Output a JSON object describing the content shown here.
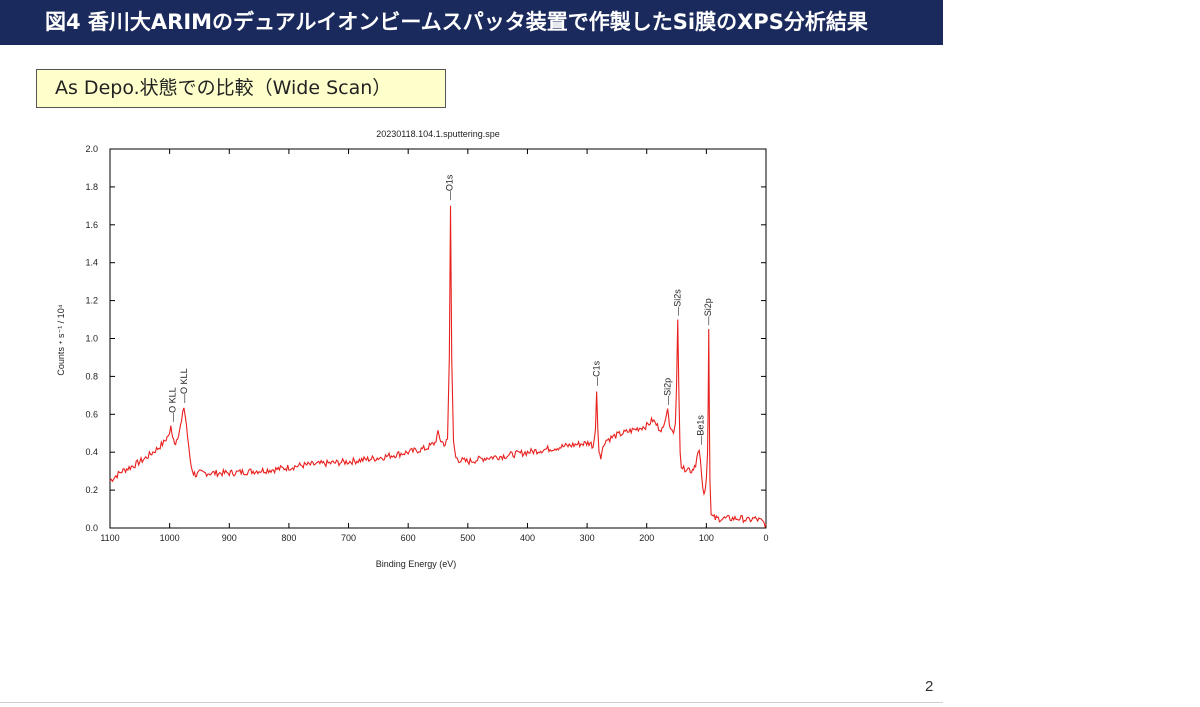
{
  "slide": {
    "title": "図4 香川大ARIMのデュアルイオンビームスパッタ装置で作製したSi膜のXPS分析結果",
    "subtitle": "As Depo.状態での比較（Wide Scan）",
    "page_number": "2"
  },
  "colors": {
    "title_bar": "#1b2a5c",
    "subtitle_box": "#ffffcc",
    "trace": "#e8201e"
  },
  "chart_data": {
    "type": "line",
    "title": "20230118.104.1.sputtering.spe",
    "xlabel": "Binding Energy (eV)",
    "ylabel": "Counts・s⁻¹ / 10⁴",
    "xlim": [
      1100,
      0
    ],
    "ylim": [
      0,
      2.0
    ],
    "x_reversed": true,
    "x_ticks": [
      1100,
      1000,
      900,
      800,
      700,
      600,
      500,
      400,
      300,
      200,
      100,
      0
    ],
    "x_tick_labels": [
      "1100",
      "1000",
      "900",
      "800",
      "700",
      "600",
      "500",
      "400",
      "300",
      "200",
      "100",
      "0"
    ],
    "y_ticks": [
      0,
      0.2,
      0.4,
      0.6,
      0.8,
      1.0,
      1.2,
      1.4,
      1.6,
      1.8,
      2.0
    ],
    "y_tick_labels": [
      "0.0",
      "0.2",
      "0.4",
      "0.6",
      "0.8",
      "1.0",
      "1.2",
      "1.4",
      "1.6",
      "1.8",
      "2.0"
    ],
    "grid": false,
    "series": [
      {
        "x": [
          1100,
          1080,
          1060,
          1040,
          1020,
          1010,
          1000,
          998,
          995,
          990,
          985,
          980,
          976,
          972,
          968,
          964,
          960,
          955,
          950,
          930,
          900,
          860,
          820,
          780,
          740,
          700,
          650,
          600,
          570,
          555,
          550,
          545,
          538,
          534,
          531,
          529,
          527,
          524,
          520,
          515,
          500,
          470,
          440,
          400,
          360,
          320,
          295,
          290,
          286,
          284,
          282,
          280,
          277,
          270,
          250,
          220,
          200,
          190,
          180,
          172,
          168,
          165,
          162,
          158,
          155,
          152,
          150,
          148,
          146,
          144,
          142,
          138,
          132,
          125,
          118,
          114,
          112,
          110,
          108,
          106,
          104,
          102,
          100,
          99,
          98,
          97,
          96,
          95,
          94,
          92,
          90,
          85,
          80,
          70,
          60,
          50,
          40,
          30,
          20,
          10,
          5,
          0
        ],
        "y": [
          0.25,
          0.3,
          0.33,
          0.37,
          0.42,
          0.45,
          0.5,
          0.54,
          0.47,
          0.45,
          0.5,
          0.56,
          0.64,
          0.55,
          0.42,
          0.33,
          0.29,
          0.28,
          0.29,
          0.29,
          0.29,
          0.3,
          0.31,
          0.33,
          0.34,
          0.35,
          0.37,
          0.4,
          0.42,
          0.45,
          0.5,
          0.46,
          0.44,
          0.47,
          0.9,
          1.7,
          0.9,
          0.45,
          0.37,
          0.36,
          0.35,
          0.37,
          0.38,
          0.4,
          0.42,
          0.44,
          0.45,
          0.43,
          0.52,
          0.72,
          0.52,
          0.4,
          0.38,
          0.46,
          0.49,
          0.52,
          0.54,
          0.57,
          0.53,
          0.52,
          0.58,
          0.63,
          0.56,
          0.52,
          0.5,
          0.55,
          0.75,
          1.1,
          0.7,
          0.4,
          0.33,
          0.31,
          0.32,
          0.3,
          0.34,
          0.4,
          0.41,
          0.36,
          0.28,
          0.21,
          0.18,
          0.2,
          0.26,
          0.33,
          0.4,
          0.65,
          1.05,
          0.6,
          0.25,
          0.07,
          0.06,
          0.05,
          0.05,
          0.05,
          0.05,
          0.05,
          0.05,
          0.04,
          0.05,
          0.04,
          0.03,
          0.02
        ]
      }
    ],
    "annotations": [
      {
        "label": "O KLL",
        "x": 995,
        "y": 0.56
      },
      {
        "label": "O KLL",
        "x": 976,
        "y": 0.66
      },
      {
        "label": "O1s",
        "x": 531,
        "y": 1.73
      },
      {
        "label": "C1s",
        "x": 284,
        "y": 0.75
      },
      {
        "label": "Si2p",
        "x": 165,
        "y": 0.65
      },
      {
        "label": "Si2s",
        "x": 148,
        "y": 1.12
      },
      {
        "label": "Be1s",
        "x": 110,
        "y": 0.44
      },
      {
        "label": "Si2p",
        "x": 97,
        "y": 1.07
      }
    ]
  }
}
